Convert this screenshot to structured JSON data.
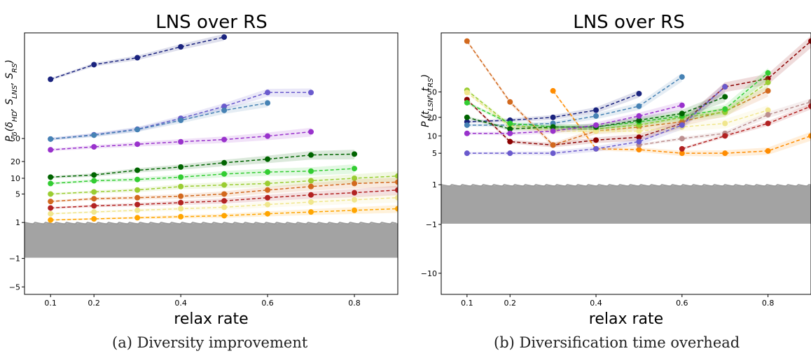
{
  "panels": [
    {
      "caption": "(a) Diversity improvement"
    },
    {
      "caption": "(b)  Diversification time overhead"
    }
  ],
  "chart_data": [
    {
      "type": "line",
      "title": "LNS over RS",
      "xlabel": "relax rate",
      "ylabel": "P_δ(δ_HD, S_LNS, S_RS)",
      "ylabel_parts": {
        "base": "P",
        "sub": "δ",
        "args": "(δ",
        "args_sub1": "HD",
        "sep1": ", S",
        "args_sub2": "LNS",
        "sep2": ", S",
        "args_sub3": "RS",
        "close": ")"
      },
      "xlim": [
        0.04,
        0.9
      ],
      "x_ticks": [
        0.1,
        0.2,
        0.4,
        0.6,
        0.8
      ],
      "y_ticks": [
        -5,
        -1,
        1,
        5,
        10,
        20,
        50
      ],
      "yscale": "symlog",
      "grid": false,
      "noise_band": {
        "y_range": [
          -1,
          1
        ],
        "color": "#999999"
      },
      "series": [
        {
          "color": "#1a237e",
          "x": [
            0.1,
            0.2,
            0.3,
            0.4,
            0.5
          ],
          "y": [
            500,
            880,
            1150,
            1750,
            2550
          ]
        },
        {
          "color": "#6a5acd",
          "x": [
            0.1,
            0.2,
            0.3,
            0.4,
            0.5,
            0.6,
            0.7
          ],
          "y": [
            49,
            58,
            72,
            110,
            175,
            300,
            300
          ]
        },
        {
          "color": "#4682b4",
          "x": [
            0.1,
            0.2,
            0.3,
            0.4,
            0.5,
            0.6
          ],
          "y": [
            49,
            57,
            71,
            102,
            150,
            200
          ]
        },
        {
          "color": "#9932cc",
          "x": [
            0.1,
            0.2,
            0.3,
            0.4,
            0.5,
            0.6,
            0.7
          ],
          "y": [
            32,
            36,
            40,
            44,
            48,
            55,
            65
          ]
        },
        {
          "color": "#006400",
          "x": [
            0.1,
            0.2,
            0.3,
            0.4,
            0.5,
            0.6,
            0.7,
            0.8
          ],
          "y": [
            10.5,
            11.5,
            14,
            16,
            19,
            22,
            26,
            27
          ]
        },
        {
          "color": "#32cd32",
          "x": [
            0.1,
            0.2,
            0.3,
            0.4,
            0.5,
            0.6,
            0.7,
            0.8
          ],
          "y": [
            8,
            9,
            9.5,
            10.5,
            12,
            13,
            13.5,
            15
          ]
        },
        {
          "color": "#9acd32",
          "x": [
            0.1,
            0.2,
            0.3,
            0.4,
            0.5,
            0.6,
            0.7,
            0.8,
            0.9
          ],
          "y": [
            5,
            5.5,
            6,
            7,
            7.5,
            8,
            9,
            10,
            11
          ]
        },
        {
          "color": "#d2691e",
          "x": [
            0.1,
            0.2,
            0.3,
            0.4,
            0.5,
            0.6,
            0.7,
            0.8,
            0.9
          ],
          "y": [
            3.5,
            4,
            4.2,
            4.5,
            5,
            6,
            7,
            8,
            8.5
          ]
        },
        {
          "color": "#b22222",
          "x": [
            0.1,
            0.2,
            0.3,
            0.4,
            0.5,
            0.6,
            0.7,
            0.8,
            0.9
          ],
          "y": [
            2.5,
            2.8,
            3,
            3.3,
            3.6,
            4.2,
            4.8,
            5.3,
            6
          ]
        },
        {
          "color": "#f0e68c",
          "x": [
            0.1,
            0.2,
            0.3,
            0.4,
            0.5,
            0.6,
            0.7,
            0.8,
            0.9
          ],
          "y": [
            1.8,
            2,
            2.2,
            2.4,
            2.6,
            3,
            3.4,
            3.8,
            4.2
          ]
        },
        {
          "color": "#ffa500",
          "x": [
            0.1,
            0.2,
            0.3,
            0.4,
            0.5,
            0.6,
            0.7,
            0.8,
            0.9
          ],
          "y": [
            1.2,
            1.3,
            1.4,
            1.5,
            1.6,
            1.8,
            2,
            2.2,
            2.4
          ]
        }
      ]
    },
    {
      "type": "line",
      "title": "LNS over RS",
      "xlabel": "relax rate",
      "ylabel": "P_t(t_LSN, t_RS)",
      "ylabel_parts": {
        "base": "P",
        "sub": "t",
        "args": "(t",
        "args_sub1": "LSN",
        "sep1": ", t",
        "args_sub2": "RS",
        "close": ")"
      },
      "xlim": [
        0.04,
        0.9
      ],
      "x_ticks": [
        0.1,
        0.2,
        0.4,
        0.6,
        0.8
      ],
      "y_ticks": [
        -10,
        -1,
        1,
        5,
        10,
        20,
        50
      ],
      "yscale": "symlog",
      "grid": false,
      "noise_band": {
        "y_range": [
          -1,
          1
        ],
        "color": "#999999"
      },
      "series": [
        {
          "color": "#1a237e",
          "x": [
            0.1,
            0.2,
            0.3,
            0.4,
            0.5
          ],
          "y": [
            17,
            18,
            20,
            26,
            47
          ]
        },
        {
          "color": "#4682b4",
          "x": [
            0.1,
            0.2,
            0.3,
            0.4,
            0.5,
            0.6
          ],
          "y": [
            15,
            15,
            16,
            21,
            30,
            85
          ]
        },
        {
          "color": "#8b0000",
          "x": [
            0.1,
            0.2,
            0.3,
            0.4,
            0.5,
            0.6,
            0.7,
            0.8,
            0.9
          ],
          "y": [
            38,
            8,
            7,
            8.5,
            9.5,
            16,
            60,
            80,
            300
          ]
        },
        {
          "color": "#ff8c00",
          "x": [
            0.3,
            0.4,
            0.5,
            0.6,
            0.7,
            0.8,
            0.9
          ],
          "y": [
            52,
            6,
            5.8,
            5,
            5,
            5.5,
            10
          ]
        },
        {
          "color": "#d2691e",
          "x": [
            0.1,
            0.2,
            0.3,
            0.4,
            0.5,
            0.6,
            0.7,
            0.8
          ],
          "y": [
            300,
            35,
            7,
            12,
            14,
            17,
            25,
            52
          ]
        },
        {
          "color": "#9acd32",
          "x": [
            0.1,
            0.2,
            0.3,
            0.4,
            0.5,
            0.6,
            0.7,
            0.8
          ],
          "y": [
            53,
            15,
            13,
            13,
            15,
            20,
            24,
            70
          ]
        },
        {
          "color": "#f0e68c",
          "x": [
            0.1,
            0.2,
            0.3,
            0.4,
            0.5,
            0.6,
            0.7,
            0.8
          ],
          "y": [
            49,
            14,
            12,
            12,
            12,
            14,
            16,
            26
          ]
        },
        {
          "color": "#32cd32",
          "x": [
            0.1,
            0.2,
            0.3,
            0.4,
            0.5,
            0.6,
            0.7,
            0.8
          ],
          "y": [
            34,
            16,
            14,
            14,
            17,
            21,
            27,
            98
          ]
        },
        {
          "color": "#006400",
          "x": [
            0.1,
            0.2,
            0.3,
            0.4,
            0.5,
            0.6,
            0.7
          ],
          "y": [
            20,
            13,
            14,
            14,
            18,
            23,
            42
          ]
        },
        {
          "color": "#9932cc",
          "x": [
            0.1,
            0.2,
            0.3,
            0.4,
            0.5,
            0.6
          ],
          "y": [
            11,
            11,
            12,
            15,
            21,
            31
          ]
        },
        {
          "color": "#bc8f8f",
          "x": [
            0.5,
            0.6,
            0.7,
            0.8,
            0.9
          ],
          "y": [
            7,
            9,
            11,
            22,
            35
          ]
        },
        {
          "color": "#b22222",
          "x": [
            0.6,
            0.7,
            0.8,
            0.9
          ],
          "y": [
            6,
            10,
            16,
            30
          ]
        },
        {
          "color": "#6a5acd",
          "x": [
            0.1,
            0.2,
            0.3,
            0.4,
            0.5,
            0.6,
            0.7
          ],
          "y": [
            5,
            5,
            5,
            6,
            8,
            15,
            60
          ]
        }
      ]
    }
  ]
}
